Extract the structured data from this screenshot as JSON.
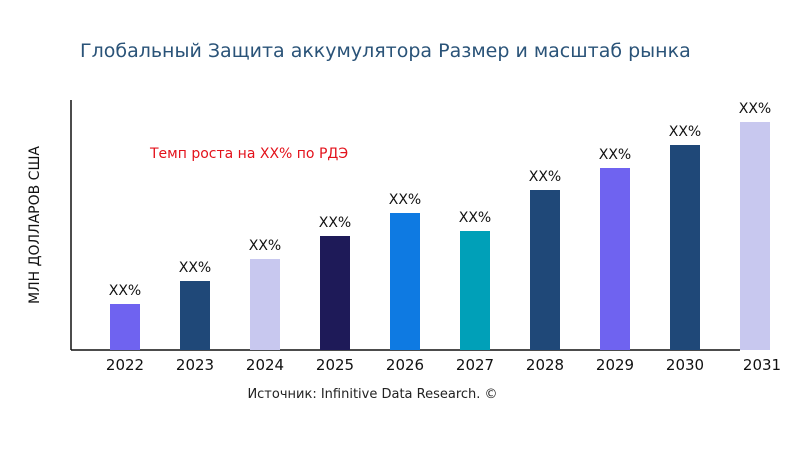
{
  "chart_data": {
    "type": "bar",
    "title": "Глобальный Защита аккумулятора Размер и масштаб рынка",
    "ylabel": "МЛН ДОЛЛАРОВ США",
    "xlabel": "",
    "categories": [
      "2022",
      "2023",
      "2024",
      "2025",
      "2026",
      "2027",
      "2028",
      "2029",
      "2030",
      "2031"
    ],
    "values": [
      46,
      69,
      91,
      114,
      137,
      119,
      160,
      182,
      205,
      228
    ],
    "data_labels": [
      "XX%",
      "XX%",
      "XX%",
      "XX%",
      "XX%",
      "XX%",
      "XX%",
      "XX%",
      "XX%",
      "XX%"
    ],
    "colors": [
      "#6f63f0",
      "#1f4878",
      "#c8c8ef",
      "#1e1a58",
      "#0e7ae2",
      "#00a0b8",
      "#1f4878",
      "#6f63f0",
      "#1f4878",
      "#c8c8ef"
    ],
    "ylim": [
      0,
      250
    ],
    "grid": false,
    "annotation": "Темп роста на XX% по РДЭ",
    "source": "Источник: Infinitive Data Research. ©"
  }
}
